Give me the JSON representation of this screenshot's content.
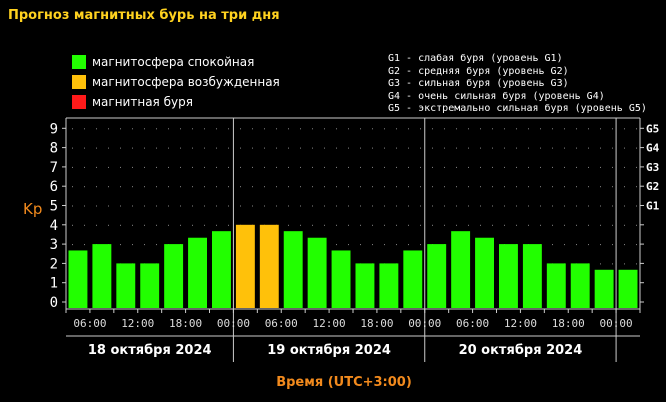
{
  "title": "Прогноз магнитных бурь на три дня",
  "legend": [
    {
      "label": "магнитосфера спокойная",
      "color": "#22ff00"
    },
    {
      "label": "магнитосфера возбужденная",
      "color": "#ffc10a"
    },
    {
      "label": "магнитная буря",
      "color": "#ff1a1a"
    }
  ],
  "g_levels": [
    "G1 - слабая буря (уровень G1)",
    "G2 - средняя буря (уровень G2)",
    "G3 - сильная буря (уровень G3)",
    "G4 - очень сильная буря (уровень G4)",
    "G5 - экстремально сильная буря (уровень G5)"
  ],
  "chart_data": {
    "type": "bar",
    "ylabel": "Kp",
    "xlabel": "Время (UTC+3:00)",
    "ylim": [
      0,
      9
    ],
    "yticks": [
      "0",
      "1",
      "2",
      "3",
      "4",
      "5",
      "6",
      "7",
      "8",
      "9"
    ],
    "right_ticks": [
      {
        "kp": 5,
        "label": "G1"
      },
      {
        "kp": 6,
        "label": "G2"
      },
      {
        "kp": 7,
        "label": "G3"
      },
      {
        "kp": 8,
        "label": "G4"
      },
      {
        "kp": 9,
        "label": "G5"
      }
    ],
    "xtick_labels": [
      "06:00",
      "12:00",
      "18:00",
      "00:00",
      "06:00",
      "12:00",
      "18:00",
      "00:00",
      "06:00",
      "12:00",
      "18:00",
      "00:00"
    ],
    "days": [
      "18 октября 2024",
      "19 октября 2024",
      "20 октября 2024"
    ],
    "grid": true,
    "values": [
      2.67,
      3,
      2,
      2,
      3,
      3.33,
      3.67,
      4,
      4,
      3.67,
      3.33,
      2.67,
      2,
      2,
      2.67,
      3,
      3.67,
      3.33,
      3,
      3,
      2,
      2,
      1.67,
      1.67
    ],
    "colors": {
      "quiet": "#22ff00",
      "active": "#ffc10a",
      "storm": "#ff1a1a"
    }
  }
}
